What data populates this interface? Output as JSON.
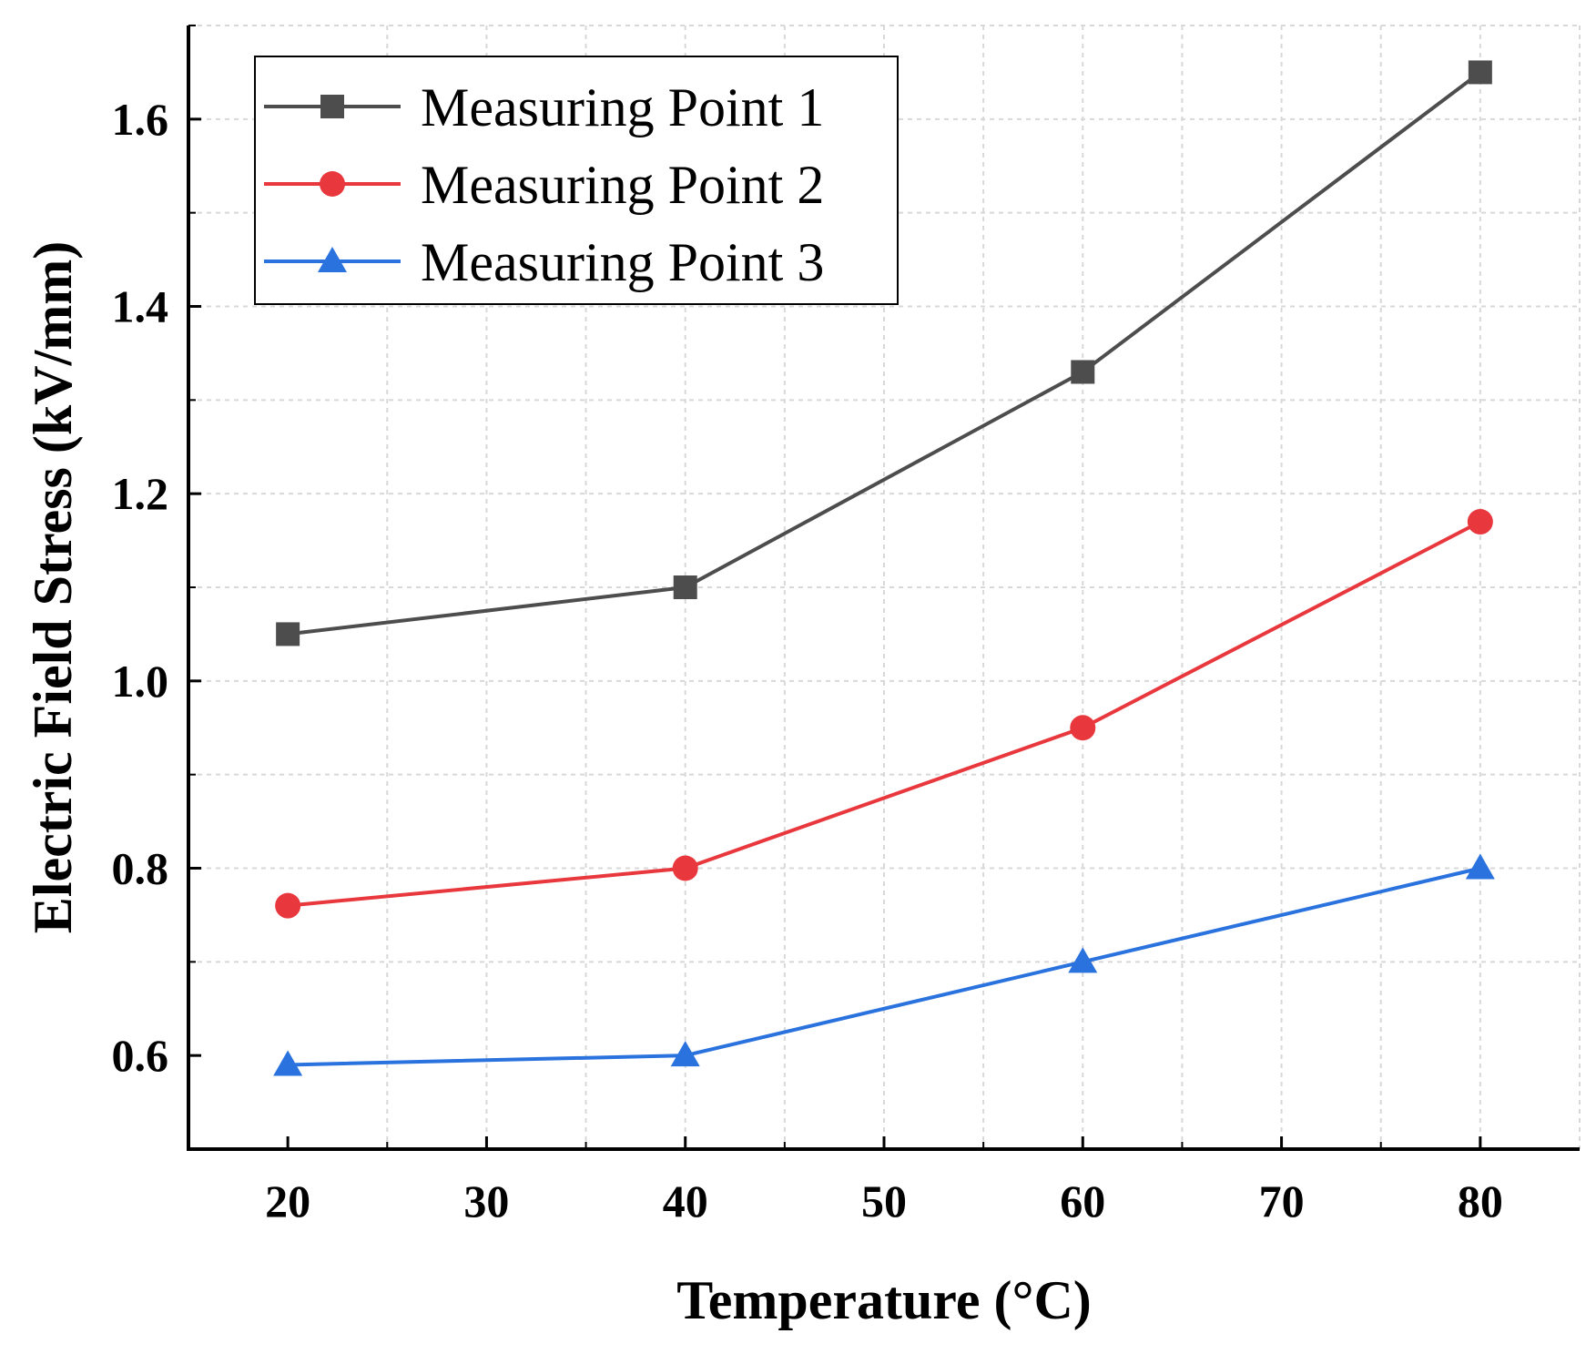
{
  "chart_data": {
    "type": "line",
    "title": "",
    "xlabel": "Temperature (°C)",
    "ylabel": "Electric Field Stress (kV/mm)",
    "x": [
      20,
      40,
      60,
      80
    ],
    "xlim": [
      15,
      85
    ],
    "ylim": [
      0.5,
      1.7
    ],
    "xticks": [
      20,
      30,
      40,
      50,
      60,
      70,
      80
    ],
    "xtick_labels": [
      "20",
      "30",
      "40",
      "50",
      "60",
      "70",
      "80"
    ],
    "yticks": [
      0.6,
      0.8,
      1.0,
      1.2,
      1.4,
      1.6
    ],
    "ytick_labels": [
      "0.6",
      "0.8",
      "1.0",
      "1.2",
      "1.4",
      "1.6"
    ],
    "grid": true,
    "legend_position": "top-left",
    "series": [
      {
        "name": "Measuring Point 1",
        "values": [
          1.05,
          1.1,
          1.33,
          1.65
        ],
        "color": "#4d4d4d",
        "marker": "square"
      },
      {
        "name": "Measuring Point 2",
        "values": [
          0.76,
          0.8,
          0.95,
          1.17
        ],
        "color": "#e8383d",
        "marker": "circle"
      },
      {
        "name": "Measuring Point 3",
        "values": [
          0.59,
          0.6,
          0.7,
          0.8
        ],
        "color": "#2a72de",
        "marker": "triangle"
      }
    ]
  }
}
